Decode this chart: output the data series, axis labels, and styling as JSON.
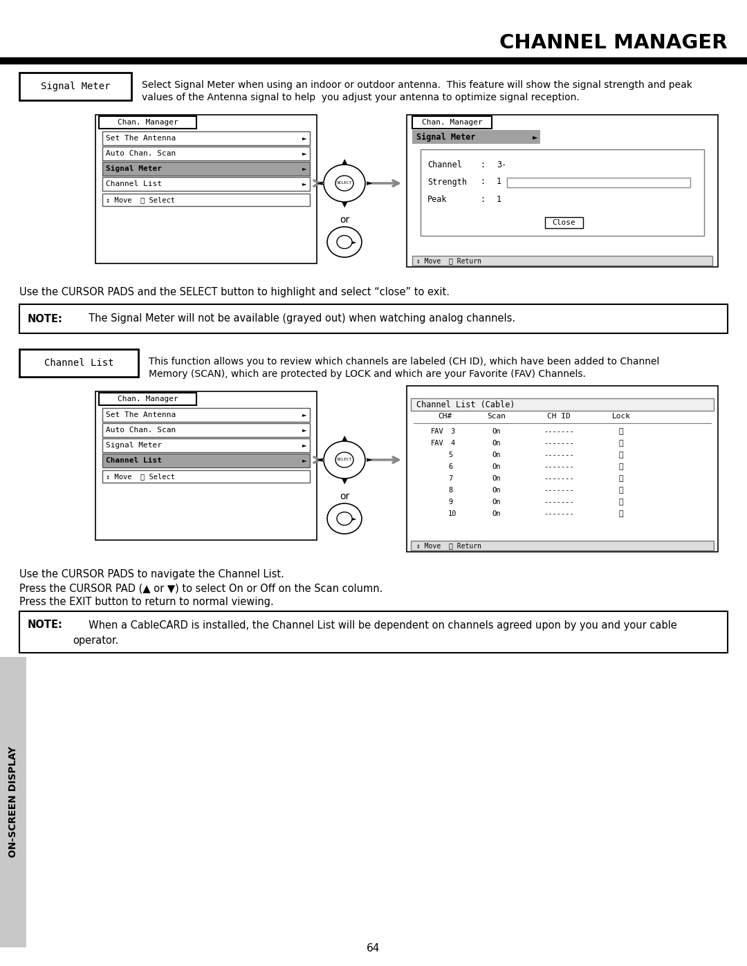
{
  "title": "CHANNEL MANAGER",
  "page_number": "64",
  "bg_color": "#ffffff",
  "signal_meter_label": "Signal Meter",
  "signal_meter_desc1": "Select Signal Meter when using an indoor or outdoor antenna.  This feature will show the signal strength and peak",
  "signal_meter_desc2": "values of the Antenna signal to help  you adjust your antenna to optimize signal reception.",
  "cursor_note_1": "Use the CURSOR PADS and the SELECT button to highlight and select “close” to exit.",
  "note1_bold": "NOTE:",
  "note1_text": "     The Signal Meter will not be available (grayed out) when watching analog channels.",
  "channel_list_label": "Channel List",
  "channel_list_desc1": "This function allows you to review which channels are labeled (CH ID), which have been added to Channel",
  "channel_list_desc2": "Memory (SCAN), which are protected by LOCK and which are your Favorite (FAV) Channels.",
  "cursor_note_2": "Use the CURSOR PADS to navigate the Channel List.",
  "cursor_note_3": "Press the CURSOR PAD (▲ or ▼) to select On or Off on the Scan column.",
  "cursor_note_4": "Press the EXIT button to return to normal viewing.",
  "note2_bold": "NOTE:",
  "note2_text1": "     When a CableCARD is installed, the Channel List will be dependent on channels agreed upon by you and your cable",
  "note2_text2": "              operator.",
  "side_label": "ON-SCREEN DISPLAY",
  "menu_highlight_color": "#808080",
  "menu_bg": "#ffffff",
  "menu_item_border": "#555555"
}
